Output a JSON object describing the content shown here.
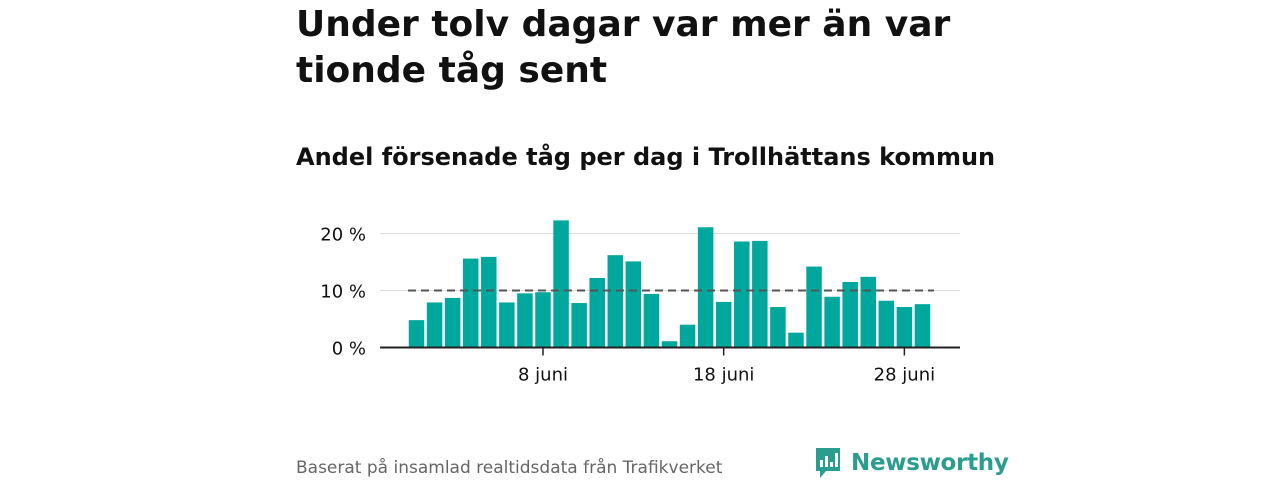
{
  "title": "Under tolv dagar var mer än var tionde tåg sent",
  "subtitle": "Andel försenade tåg per dag i Trollhättans kommun",
  "footer": {
    "source": "Baserat på insamlad realtidsdata från Trafikverket",
    "brand": "Newsworthy"
  },
  "colors": {
    "bar": "#00a79d",
    "reference_line": "#555555",
    "grid": "#dddddd",
    "brand": "#2a9d8f"
  },
  "chart_data": {
    "type": "bar",
    "x_unit": "juni",
    "x": [
      1,
      2,
      3,
      4,
      5,
      6,
      7,
      8,
      9,
      10,
      11,
      12,
      13,
      14,
      15,
      16,
      17,
      18,
      19,
      20,
      21,
      22,
      23,
      24,
      25,
      26,
      27,
      28,
      29
    ],
    "values": [
      4.8,
      7.9,
      8.7,
      15.6,
      15.9,
      7.9,
      9.5,
      9.7,
      22.3,
      7.8,
      12.2,
      16.2,
      15.1,
      9.4,
      1.1,
      4.0,
      21.1,
      8.0,
      18.6,
      18.7,
      7.1,
      2.6,
      14.2,
      8.9,
      11.5,
      12.4,
      8.2,
      7.1,
      7.6
    ],
    "reference_line": 10,
    "ylim": [
      0,
      25
    ],
    "yticks": [
      {
        "value": 0,
        "label": "0 %"
      },
      {
        "value": 10,
        "label": "10 %"
      },
      {
        "value": 20,
        "label": "20 %"
      }
    ],
    "xticks": [
      {
        "value": 8,
        "label": "8 juni"
      },
      {
        "value": 18,
        "label": "18 juni"
      },
      {
        "value": 28,
        "label": "28 juni"
      }
    ],
    "grid": true
  }
}
